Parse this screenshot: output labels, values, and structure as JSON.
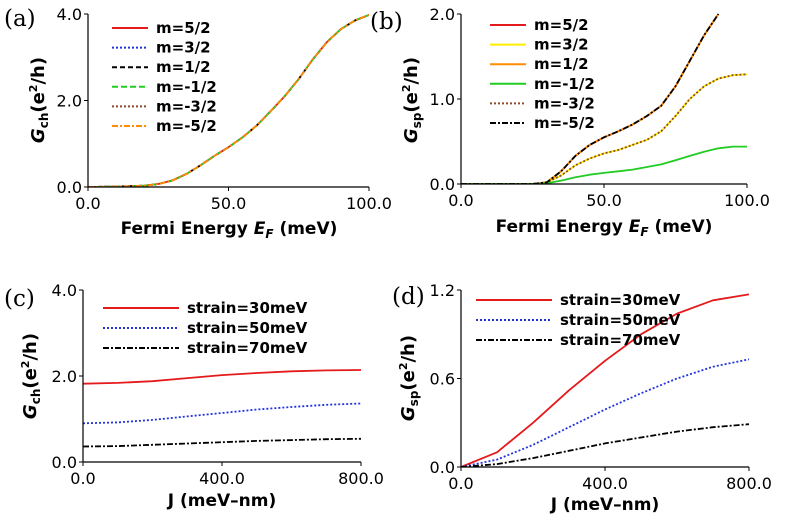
{
  "chart_data": [
    {
      "panel": "(a)",
      "type": "line",
      "xlabel": "Fermi Energy E_F (meV)",
      "xlabel_parts": [
        "Fermi Energy ",
        "E",
        "F",
        " (meV)"
      ],
      "ylabel_parts": [
        "G",
        "ch",
        "(e",
        "2",
        "/h)"
      ],
      "xlim": [
        0,
        100
      ],
      "ylim": [
        0,
        4
      ],
      "xticks": [
        "0.0",
        "50.0",
        "100.0"
      ],
      "yticks": [
        "0.0",
        "2.0",
        "4.0"
      ],
      "x": [
        0,
        10,
        20,
        25,
        30,
        35,
        40,
        45,
        50,
        55,
        60,
        65,
        70,
        75,
        80,
        85,
        90,
        95,
        100
      ],
      "series": [
        {
          "name": "m=5/2",
          "color": "#e41a1c",
          "dash": "",
          "values": [
            0,
            0.01,
            0.03,
            0.07,
            0.15,
            0.3,
            0.5,
            0.72,
            0.92,
            1.15,
            1.42,
            1.75,
            2.1,
            2.5,
            2.95,
            3.35,
            3.65,
            3.85,
            3.98
          ]
        },
        {
          "name": "m=3/2",
          "color": "#2233dd",
          "dash": "2,2",
          "values": [
            0,
            0.01,
            0.03,
            0.07,
            0.15,
            0.3,
            0.5,
            0.72,
            0.92,
            1.15,
            1.42,
            1.75,
            2.1,
            2.5,
            2.95,
            3.35,
            3.65,
            3.85,
            3.98
          ]
        },
        {
          "name": "m=1/2",
          "color": "#000000",
          "dash": "5,3",
          "values": [
            0,
            0.01,
            0.03,
            0.07,
            0.15,
            0.3,
            0.5,
            0.72,
            0.92,
            1.15,
            1.42,
            1.75,
            2.1,
            2.5,
            2.95,
            3.35,
            3.65,
            3.85,
            3.98
          ]
        },
        {
          "name": "m=-1/2",
          "color": "#22cc22",
          "dash": "6,3",
          "values": [
            0,
            0.01,
            0.03,
            0.07,
            0.15,
            0.3,
            0.5,
            0.72,
            0.92,
            1.15,
            1.42,
            1.75,
            2.1,
            2.5,
            2.95,
            3.35,
            3.65,
            3.85,
            3.98
          ]
        },
        {
          "name": "m=-3/2",
          "color": "#8b4a2b",
          "dash": "2,2",
          "values": [
            0,
            0.01,
            0.03,
            0.07,
            0.15,
            0.3,
            0.5,
            0.72,
            0.92,
            1.15,
            1.42,
            1.75,
            2.1,
            2.5,
            2.95,
            3.35,
            3.65,
            3.85,
            3.98
          ]
        },
        {
          "name": "m=-5/2",
          "color": "#ff8c00",
          "dash": "6,2,2,2",
          "values": [
            0,
            0.01,
            0.03,
            0.07,
            0.15,
            0.3,
            0.5,
            0.72,
            0.92,
            1.15,
            1.42,
            1.75,
            2.1,
            2.5,
            2.95,
            3.35,
            3.65,
            3.85,
            3.98
          ]
        }
      ]
    },
    {
      "panel": "(b)",
      "type": "line",
      "xlabel": "Fermi Energy E_F (meV)",
      "xlabel_parts": [
        "Fermi Energy ",
        "E",
        "F",
        " (meV)"
      ],
      "ylabel_parts": [
        "G",
        "sp",
        "(e",
        "2",
        "/h)"
      ],
      "xlim": [
        0,
        100
      ],
      "ylim": [
        0,
        2
      ],
      "xticks": [
        "0.0",
        "50.0",
        "100.0"
      ],
      "yticks": [
        "0.0",
        "1.0",
        "2.0"
      ],
      "x": [
        0,
        10,
        20,
        25,
        30,
        35,
        40,
        45,
        50,
        55,
        60,
        65,
        70,
        75,
        80,
        85,
        90
      ],
      "series": [
        {
          "name": "m=5/2",
          "color": "#e41a1c",
          "dash": "",
          "values": [
            0,
            0,
            0,
            0,
            0.02,
            0.15,
            0.33,
            0.46,
            0.55,
            0.62,
            0.7,
            0.8,
            0.92,
            1.15,
            1.45,
            1.75,
            2.0
          ]
        },
        {
          "name": "m=3/2",
          "color": "#ffee00",
          "dash": "",
          "x": [
            0,
            10,
            20,
            25,
            30,
            35,
            40,
            45,
            50,
            55,
            60,
            65,
            70,
            75,
            80,
            85,
            90,
            95,
            100
          ],
          "values": [
            0,
            0,
            0,
            0,
            0.02,
            0.1,
            0.22,
            0.3,
            0.36,
            0.4,
            0.46,
            0.52,
            0.62,
            0.8,
            1.0,
            1.15,
            1.24,
            1.28,
            1.29
          ]
        },
        {
          "name": "m=1/2",
          "color": "#ff8c00",
          "dash": "",
          "values": [
            0,
            0,
            0,
            0,
            0.02,
            0.15,
            0.33,
            0.46,
            0.55,
            0.62,
            0.7,
            0.8,
            0.92,
            1.15,
            1.45,
            1.75,
            2.0
          ]
        },
        {
          "name": "m=-1/2",
          "color": "#22cc22",
          "dash": "",
          "x": [
            0,
            10,
            20,
            25,
            30,
            35,
            40,
            45,
            50,
            55,
            60,
            65,
            70,
            75,
            80,
            85,
            90,
            95,
            100
          ],
          "values": [
            0,
            0,
            0,
            0,
            0.01,
            0.04,
            0.08,
            0.11,
            0.13,
            0.15,
            0.17,
            0.2,
            0.23,
            0.28,
            0.33,
            0.38,
            0.42,
            0.44,
            0.44
          ]
        },
        {
          "name": "m=-3/2",
          "color": "#8b4a2b",
          "dash": "2,2",
          "x": [
            0,
            10,
            20,
            25,
            30,
            35,
            40,
            45,
            50,
            55,
            60,
            65,
            70,
            75,
            80,
            85,
            90,
            95,
            100
          ],
          "values": [
            0,
            0,
            0,
            0,
            0.02,
            0.1,
            0.22,
            0.3,
            0.36,
            0.4,
            0.46,
            0.52,
            0.62,
            0.8,
            1.0,
            1.15,
            1.24,
            1.28,
            1.29
          ]
        },
        {
          "name": "m=-5/2",
          "color": "#000000",
          "dash": "6,2,2,2",
          "values": [
            0,
            0,
            0,
            0,
            0.02,
            0.15,
            0.33,
            0.46,
            0.55,
            0.62,
            0.7,
            0.8,
            0.92,
            1.15,
            1.45,
            1.75,
            2.0
          ]
        }
      ]
    },
    {
      "panel": "(c)",
      "type": "line",
      "xlabel": "J (meV–nm)",
      "ylabel_parts": [
        "G",
        "ch",
        "(e",
        "2",
        "/h)"
      ],
      "xlim": [
        0,
        800
      ],
      "ylim": [
        0,
        4
      ],
      "xticks": [
        "0.0",
        "400.0",
        "800.0"
      ],
      "yticks": [
        "0.0",
        "2.0",
        "4.0"
      ],
      "x": [
        0,
        100,
        200,
        300,
        400,
        500,
        600,
        700,
        800
      ],
      "series": [
        {
          "name": "strain=30meV",
          "color": "#e41a1c",
          "dash": "",
          "values": [
            1.82,
            1.84,
            1.88,
            1.95,
            2.02,
            2.07,
            2.11,
            2.13,
            2.14
          ]
        },
        {
          "name": "strain=50meV",
          "color": "#2233dd",
          "dash": "2,2",
          "values": [
            0.9,
            0.92,
            0.98,
            1.06,
            1.14,
            1.22,
            1.28,
            1.33,
            1.36
          ]
        },
        {
          "name": "strain=70meV",
          "color": "#000000",
          "dash": "6,2,2,2",
          "values": [
            0.36,
            0.37,
            0.4,
            0.43,
            0.46,
            0.49,
            0.51,
            0.53,
            0.54
          ]
        }
      ]
    },
    {
      "panel": "(d)",
      "type": "line",
      "xlabel": "J (meV–nm)",
      "ylabel_parts": [
        "G",
        "sp",
        "(e",
        "2",
        "/h)"
      ],
      "xlim": [
        0,
        800
      ],
      "ylim": [
        0,
        1.2
      ],
      "xticks": [
        "0.0",
        "400.0",
        "800.0"
      ],
      "yticks": [
        "0.0",
        "0.6",
        "1.2"
      ],
      "x": [
        0,
        100,
        200,
        300,
        400,
        500,
        600,
        700,
        800
      ],
      "series": [
        {
          "name": "strain=30meV",
          "color": "#e41a1c",
          "dash": "",
          "values": [
            0,
            0.1,
            0.3,
            0.52,
            0.72,
            0.9,
            1.04,
            1.13,
            1.17
          ]
        },
        {
          "name": "strain=50meV",
          "color": "#2233dd",
          "dash": "2,2",
          "values": [
            0,
            0.05,
            0.15,
            0.27,
            0.39,
            0.5,
            0.6,
            0.68,
            0.73
          ]
        },
        {
          "name": "strain=70meV",
          "color": "#000000",
          "dash": "6,2,2,2",
          "values": [
            0,
            0.02,
            0.06,
            0.11,
            0.16,
            0.2,
            0.24,
            0.27,
            0.29
          ]
        }
      ]
    }
  ]
}
